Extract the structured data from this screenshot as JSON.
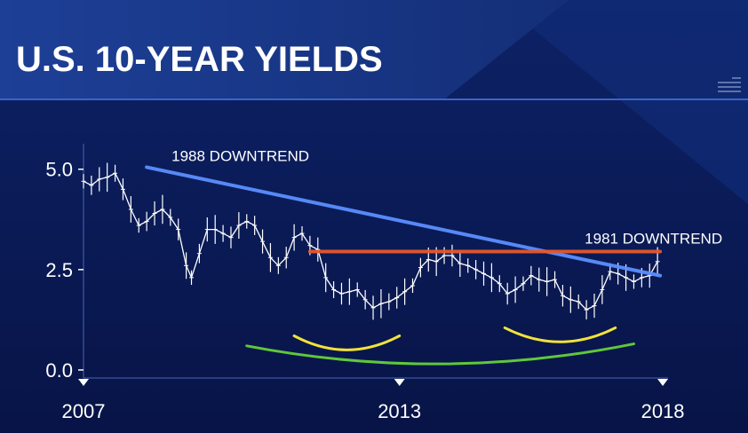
{
  "header": {
    "title": "U.S. 10-YEAR YIELDS"
  },
  "colors": {
    "background": "#0a1a55",
    "banner": "#1a3a8c",
    "price": "#ffffff",
    "trend_1988": "#5b8fff",
    "trend_1981": "#e8582a",
    "arc_small": "#f2e23a",
    "arc_large": "#5fc83a"
  },
  "chart_data": {
    "type": "line",
    "title": "U.S. 10-YEAR YIELDS",
    "xlabel": "",
    "ylabel": "",
    "xlim": [
      2007,
      2018.1
    ],
    "ylim": [
      -0.2,
      5.9
    ],
    "grid": false,
    "y_ticks": [
      {
        "value": 0.0,
        "label": "0.0"
      },
      {
        "value": 2.5,
        "label": "2.5"
      },
      {
        "value": 5.0,
        "label": "5.0"
      }
    ],
    "x_ticks": [
      {
        "value": 2007,
        "label": "2007"
      },
      {
        "value": 2013,
        "label": "2013"
      },
      {
        "value": 2018,
        "label": "2018"
      }
    ],
    "series": [
      {
        "x": [
          2007.0,
          2007.15,
          2007.3,
          2007.45,
          2007.6,
          2007.75,
          2007.9,
          2008.05,
          2008.2,
          2008.35,
          2008.5,
          2008.65,
          2008.8,
          2008.95,
          2009.05,
          2009.2,
          2009.35,
          2009.5,
          2009.65,
          2009.8,
          2009.95,
          2010.1,
          2010.25,
          2010.4,
          2010.55,
          2010.7,
          2010.85,
          2011.0,
          2011.15,
          2011.3,
          2011.45,
          2011.6,
          2011.75,
          2011.9,
          2012.05,
          2012.2,
          2012.35,
          2012.5,
          2012.65,
          2012.8,
          2012.95,
          2013.1,
          2013.25,
          2013.4,
          2013.55,
          2013.7,
          2013.85,
          2014.0,
          2014.15,
          2014.3,
          2014.45,
          2014.6,
          2014.75,
          2014.9,
          2015.05,
          2015.2,
          2015.35,
          2015.5,
          2015.65,
          2015.8,
          2015.95,
          2016.1,
          2016.25,
          2016.4,
          2016.55,
          2016.7,
          2016.85,
          2017.0,
          2017.15,
          2017.3,
          2017.45,
          2017.6,
          2017.75,
          2017.9
        ],
        "values": [
          4.7,
          4.6,
          4.75,
          4.8,
          4.9,
          4.5,
          4.0,
          3.6,
          3.7,
          3.9,
          4.0,
          3.8,
          3.5,
          2.6,
          2.3,
          2.9,
          3.5,
          3.5,
          3.4,
          3.3,
          3.6,
          3.7,
          3.6,
          3.2,
          2.8,
          2.6,
          2.8,
          3.3,
          3.4,
          3.1,
          3.0,
          2.3,
          2.0,
          1.9,
          1.95,
          2.0,
          1.75,
          1.55,
          1.65,
          1.7,
          1.8,
          1.95,
          2.1,
          2.55,
          2.75,
          2.7,
          2.85,
          2.85,
          2.65,
          2.6,
          2.5,
          2.4,
          2.3,
          2.15,
          1.9,
          2.0,
          2.15,
          2.35,
          2.25,
          2.2,
          2.25,
          1.85,
          1.75,
          1.7,
          1.5,
          1.6,
          2.0,
          2.45,
          2.4,
          2.3,
          2.2,
          2.3,
          2.35,
          2.7
        ]
      }
    ],
    "annotations": [
      {
        "kind": "trendline",
        "label": "1988 DOWNTREND",
        "points": [
          [
            2008.2,
            5.05
          ],
          [
            2017.95,
            2.35
          ]
        ],
        "color": "#5b8fff"
      },
      {
        "kind": "trendline",
        "label": "1981 DOWNTREND",
        "points": [
          [
            2011.3,
            2.95
          ],
          [
            2017.95,
            2.95
          ]
        ],
        "color": "#e8582a"
      },
      {
        "kind": "arc",
        "label": "",
        "from": [
          2011.0,
          0.85
        ],
        "to": [
          2013.0,
          0.85
        ],
        "sag_value": 0.5,
        "color": "#f2e23a"
      },
      {
        "kind": "arc",
        "label": "",
        "from": [
          2015.0,
          1.05
        ],
        "to": [
          2017.1,
          1.05
        ],
        "sag_value": 0.7,
        "color": "#f2e23a"
      },
      {
        "kind": "arc",
        "label": "",
        "from": [
          2010.1,
          0.6
        ],
        "to": [
          2017.45,
          0.65
        ],
        "sag_value": 0.15,
        "color": "#5fc83a"
      }
    ]
  }
}
